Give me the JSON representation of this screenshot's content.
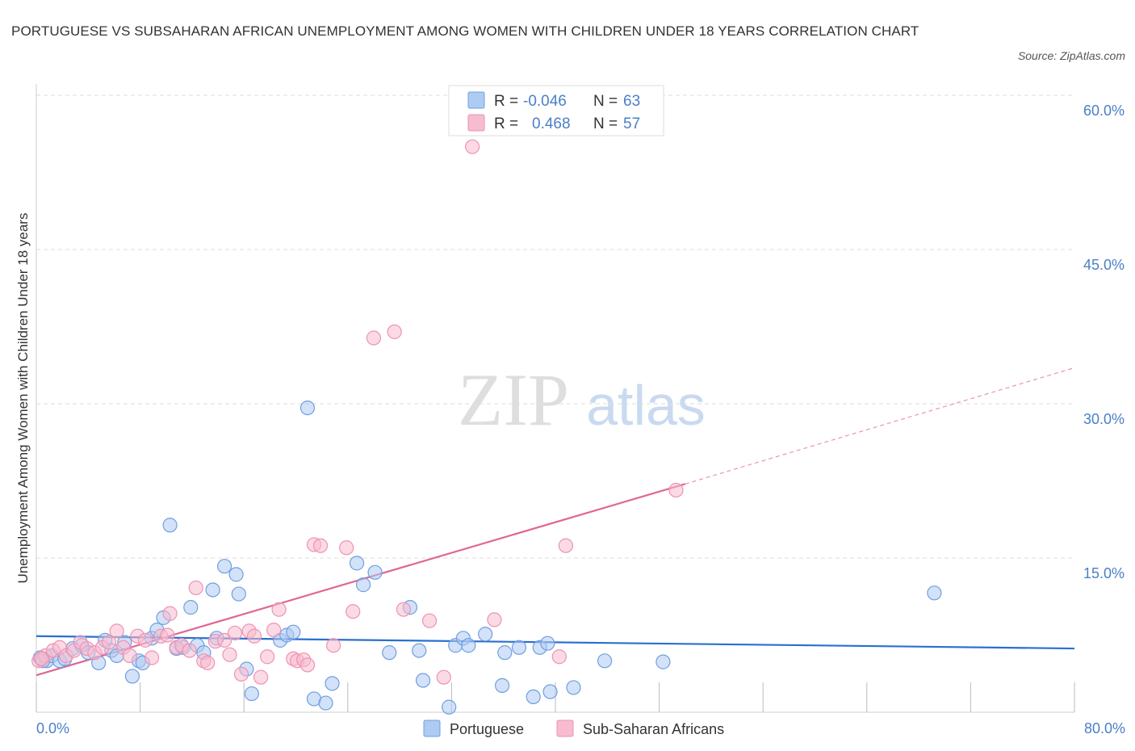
{
  "title": "PORTUGUESE VS SUBSAHARAN AFRICAN UNEMPLOYMENT AMONG WOMEN WITH CHILDREN UNDER 18 YEARS CORRELATION CHART",
  "source": "Source: ZipAtlas.com",
  "watermark": {
    "zip": "ZIP",
    "atlas": "atlas"
  },
  "colors": {
    "portuguese_fill": "#aecbf2",
    "portuguese_stroke": "#6f9fe0",
    "portuguese_line": "#2a6fcf",
    "subsaharan_fill": "#f7bcd0",
    "subsaharan_stroke": "#ee92b2",
    "subsaharan_line": "#e06693",
    "axis_text": "#4a7fc8",
    "grid": "#dddddd"
  },
  "legend_box": {
    "rows": [
      {
        "r_label": "R =",
        "r_value": "-0.046",
        "n_label": "N =",
        "n_value": "63"
      },
      {
        "r_label": "R =",
        "r_value": "0.468",
        "n_label": "N =",
        "n_value": "57"
      }
    ]
  },
  "chart_data": {
    "type": "scatter",
    "ylabel": "Unemployment Among Women with Children Under 18 years",
    "xlabel": "",
    "xlim": [
      0,
      80
    ],
    "ylim": [
      0,
      60
    ],
    "x_tick_labels": [
      "0.0%",
      "80.0%"
    ],
    "y_ticks": [
      15,
      30,
      45,
      60
    ],
    "y_tick_labels": [
      "15.0%",
      "30.0%",
      "45.0%",
      "60.0%"
    ],
    "grid": true,
    "legend_position": "bottom",
    "series": [
      {
        "name": "Portuguese",
        "R": -0.046,
        "N": 63,
        "trend": {
          "x": [
            0,
            80
          ],
          "y": [
            7.4,
            6.2
          ]
        },
        "points": [
          [
            0.3,
            5.3
          ],
          [
            0.8,
            5.0
          ],
          [
            1.2,
            5.5
          ],
          [
            1.8,
            5.0
          ],
          [
            2.8,
            6.2
          ],
          [
            3.5,
            6.5
          ],
          [
            4.0,
            5.8
          ],
          [
            4.8,
            4.8
          ],
          [
            5.3,
            7.0
          ],
          [
            5.8,
            6.0
          ],
          [
            6.2,
            5.5
          ],
          [
            6.8,
            6.8
          ],
          [
            7.4,
            3.5
          ],
          [
            7.9,
            5.0
          ],
          [
            8.2,
            4.8
          ],
          [
            8.9,
            7.2
          ],
          [
            9.3,
            8.0
          ],
          [
            9.8,
            9.2
          ],
          [
            10.3,
            18.2
          ],
          [
            10.8,
            6.2
          ],
          [
            11.3,
            6.3
          ],
          [
            11.9,
            10.2
          ],
          [
            12.4,
            6.5
          ],
          [
            12.9,
            5.8
          ],
          [
            13.6,
            11.9
          ],
          [
            13.9,
            7.2
          ],
          [
            14.5,
            14.2
          ],
          [
            15.4,
            13.4
          ],
          [
            15.6,
            11.5
          ],
          [
            16.2,
            4.2
          ],
          [
            16.6,
            1.8
          ],
          [
            18.8,
            7.0
          ],
          [
            19.3,
            7.5
          ],
          [
            19.8,
            7.8
          ],
          [
            20.9,
            29.6
          ],
          [
            21.4,
            1.3
          ],
          [
            22.3,
            0.9
          ],
          [
            22.8,
            2.8
          ],
          [
            24.7,
            14.5
          ],
          [
            25.2,
            12.4
          ],
          [
            26.1,
            13.6
          ],
          [
            27.2,
            5.8
          ],
          [
            28.8,
            10.2
          ],
          [
            29.5,
            6.0
          ],
          [
            29.8,
            3.1
          ],
          [
            31.8,
            0.5
          ],
          [
            32.3,
            6.5
          ],
          [
            32.9,
            7.2
          ],
          [
            33.3,
            6.5
          ],
          [
            34.6,
            7.6
          ],
          [
            36.1,
            5.8
          ],
          [
            35.9,
            2.6
          ],
          [
            37.2,
            6.3
          ],
          [
            38.3,
            1.5
          ],
          [
            38.8,
            6.3
          ],
          [
            39.4,
            6.7
          ],
          [
            39.6,
            2.0
          ],
          [
            41.4,
            2.4
          ],
          [
            43.8,
            5.0
          ],
          [
            48.3,
            4.9
          ],
          [
            69.2,
            11.6
          ],
          [
            0.5,
            5.0
          ],
          [
            2.2,
            5.2
          ]
        ]
      },
      {
        "name": "Sub-Saharan Africans",
        "R": 0.468,
        "N": 57,
        "trend": {
          "x": [
            0,
            50
          ],
          "y": [
            3.6,
            22.2
          ]
        },
        "trend_extension": {
          "x": [
            50,
            80
          ],
          "y": [
            22.2,
            33.5
          ]
        },
        "points": [
          [
            0.2,
            5.0
          ],
          [
            0.7,
            5.5
          ],
          [
            1.3,
            6.0
          ],
          [
            1.8,
            6.3
          ],
          [
            2.3,
            5.5
          ],
          [
            2.9,
            6.0
          ],
          [
            3.4,
            6.8
          ],
          [
            3.9,
            6.2
          ],
          [
            4.5,
            5.8
          ],
          [
            5.1,
            6.3
          ],
          [
            5.6,
            6.8
          ],
          [
            6.2,
            7.9
          ],
          [
            6.7,
            6.3
          ],
          [
            7.2,
            5.5
          ],
          [
            7.8,
            7.4
          ],
          [
            8.4,
            7.0
          ],
          [
            8.9,
            5.3
          ],
          [
            9.6,
            7.4
          ],
          [
            10.1,
            7.5
          ],
          [
            10.3,
            9.6
          ],
          [
            10.8,
            6.3
          ],
          [
            11.2,
            6.5
          ],
          [
            11.8,
            6.0
          ],
          [
            12.3,
            12.1
          ],
          [
            12.9,
            5.0
          ],
          [
            13.2,
            4.8
          ],
          [
            13.8,
            6.9
          ],
          [
            14.5,
            7.0
          ],
          [
            14.9,
            5.6
          ],
          [
            15.3,
            7.7
          ],
          [
            15.8,
            3.7
          ],
          [
            16.4,
            7.9
          ],
          [
            16.8,
            7.4
          ],
          [
            17.3,
            3.4
          ],
          [
            17.8,
            5.4
          ],
          [
            18.3,
            8.0
          ],
          [
            18.7,
            10.0
          ],
          [
            19.8,
            5.2
          ],
          [
            20.1,
            5.0
          ],
          [
            20.6,
            5.1
          ],
          [
            20.9,
            4.6
          ],
          [
            21.4,
            16.3
          ],
          [
            21.9,
            16.2
          ],
          [
            22.9,
            6.5
          ],
          [
            23.9,
            16.0
          ],
          [
            24.4,
            9.8
          ],
          [
            26.0,
            36.4
          ],
          [
            27.6,
            37.0
          ],
          [
            28.3,
            10.0
          ],
          [
            30.3,
            8.9
          ],
          [
            31.4,
            3.4
          ],
          [
            33.6,
            55.0
          ],
          [
            35.3,
            9.0
          ],
          [
            40.3,
            5.4
          ],
          [
            40.8,
            16.2
          ],
          [
            49.3,
            21.6
          ],
          [
            0.4,
            5.2
          ]
        ]
      }
    ]
  }
}
